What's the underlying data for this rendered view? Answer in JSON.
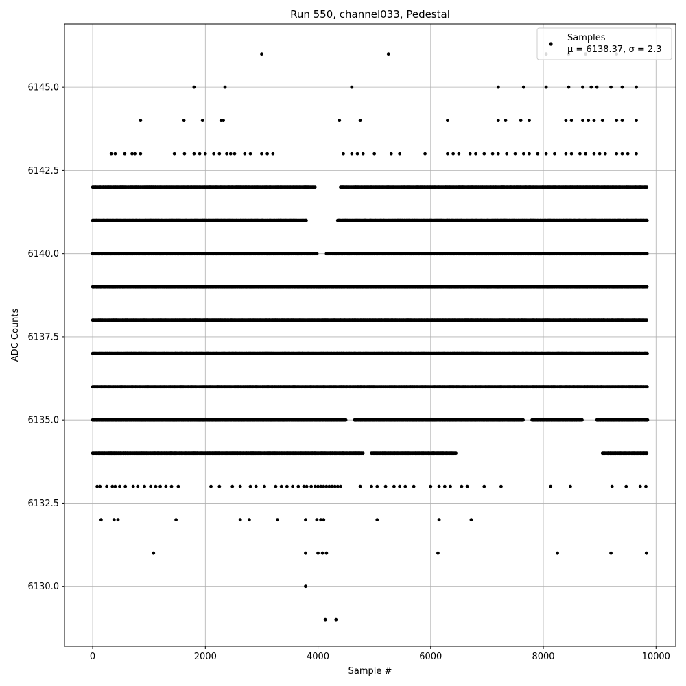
{
  "chart_data": {
    "type": "scatter",
    "title": "Run 550, channel033, Pedestal",
    "xlabel": "Sample #",
    "ylabel": "ADC Counts",
    "xlim": [
      -500,
      10350
    ],
    "ylim": [
      6128.2,
      6146.9
    ],
    "xticks": [
      0,
      2000,
      4000,
      6000,
      8000,
      10000
    ],
    "xtick_labels": [
      "0",
      "2000",
      "4000",
      "6000",
      "8000",
      "10000"
    ],
    "yticks": [
      6130.0,
      6132.5,
      6135.0,
      6137.5,
      6140.0,
      6142.5,
      6145.0
    ],
    "ytick_labels": [
      "6130.0",
      "6132.5",
      "6135.0",
      "6137.5",
      "6140.0",
      "6142.5",
      "6145.0"
    ],
    "grid": true,
    "legend_position": "top-right",
    "marker_color": "#000000",
    "series": [
      {
        "name": "Samples",
        "label_line1": "Samples",
        "label_line2_prefix": "μ = 6138.37, ",
        "label_line2_suffix": "σ = 2.3",
        "dense_levels": [
          {
            "y": 6134,
            "ranges": [
              [
                0,
                4800
              ],
              [
                4950,
                6450
              ],
              [
                9050,
                9850
              ]
            ]
          },
          {
            "y": 6135,
            "ranges": [
              [
                0,
                4500
              ],
              [
                4650,
                7650
              ],
              [
                7800,
                8700
              ],
              [
                8950,
                9850
              ]
            ]
          },
          {
            "y": 6136,
            "ranges": [
              [
                0,
                9850
              ]
            ]
          },
          {
            "y": 6137,
            "ranges": [
              [
                0,
                9850
              ]
            ]
          },
          {
            "y": 6138,
            "ranges": [
              [
                0,
                9850
              ]
            ]
          },
          {
            "y": 6139,
            "ranges": [
              [
                0,
                9850
              ]
            ]
          },
          {
            "y": 6140,
            "ranges": [
              [
                0,
                4000
              ],
              [
                4150,
                9850
              ]
            ]
          },
          {
            "y": 6141,
            "ranges": [
              [
                0,
                3800
              ],
              [
                4350,
                9850
              ]
            ]
          },
          {
            "y": 6142,
            "ranges": [
              [
                0,
                3950
              ],
              [
                4400,
                9850
              ]
            ]
          }
        ],
        "points": [
          [
            3000,
            6146
          ],
          [
            5250,
            6146
          ],
          [
            8050,
            6146
          ],
          [
            8450,
            6146
          ],
          [
            8750,
            6146
          ],
          [
            9300,
            6146
          ],
          [
            1800,
            6145
          ],
          [
            2350,
            6145
          ],
          [
            4600,
            6145
          ],
          [
            7200,
            6145
          ],
          [
            7650,
            6145
          ],
          [
            8050,
            6145
          ],
          [
            8450,
            6145
          ],
          [
            8700,
            6145
          ],
          [
            8850,
            6145
          ],
          [
            8950,
            6145
          ],
          [
            9200,
            6145
          ],
          [
            9400,
            6145
          ],
          [
            9650,
            6145
          ],
          [
            850,
            6144
          ],
          [
            1620,
            6144
          ],
          [
            1950,
            6144
          ],
          [
            2280,
            6144
          ],
          [
            2320,
            6144
          ],
          [
            4380,
            6144
          ],
          [
            4750,
            6144
          ],
          [
            6300,
            6144
          ],
          [
            7200,
            6144
          ],
          [
            7330,
            6144
          ],
          [
            7600,
            6144
          ],
          [
            7750,
            6144
          ],
          [
            8400,
            6144
          ],
          [
            8500,
            6144
          ],
          [
            8700,
            6144
          ],
          [
            8800,
            6144
          ],
          [
            8900,
            6144
          ],
          [
            9050,
            6144
          ],
          [
            9300,
            6144
          ],
          [
            9400,
            6144
          ],
          [
            9650,
            6144
          ],
          [
            330,
            6143
          ],
          [
            400,
            6143
          ],
          [
            570,
            6143
          ],
          [
            700,
            6143
          ],
          [
            750,
            6143
          ],
          [
            850,
            6143
          ],
          [
            1450,
            6143
          ],
          [
            1630,
            6143
          ],
          [
            1800,
            6143
          ],
          [
            1900,
            6143
          ],
          [
            2000,
            6143
          ],
          [
            2150,
            6143
          ],
          [
            2250,
            6143
          ],
          [
            2380,
            6143
          ],
          [
            2450,
            6143
          ],
          [
            2520,
            6143
          ],
          [
            2700,
            6143
          ],
          [
            2800,
            6143
          ],
          [
            3000,
            6143
          ],
          [
            3100,
            6143
          ],
          [
            3200,
            6143
          ],
          [
            4450,
            6143
          ],
          [
            4600,
            6143
          ],
          [
            4700,
            6143
          ],
          [
            4800,
            6143
          ],
          [
            5000,
            6143
          ],
          [
            5300,
            6143
          ],
          [
            5450,
            6143
          ],
          [
            5900,
            6143
          ],
          [
            6300,
            6143
          ],
          [
            6400,
            6143
          ],
          [
            6500,
            6143
          ],
          [
            6700,
            6143
          ],
          [
            6800,
            6143
          ],
          [
            6950,
            6143
          ],
          [
            7100,
            6143
          ],
          [
            7200,
            6143
          ],
          [
            7350,
            6143
          ],
          [
            7500,
            6143
          ],
          [
            7650,
            6143
          ],
          [
            7750,
            6143
          ],
          [
            7900,
            6143
          ],
          [
            8050,
            6143
          ],
          [
            8200,
            6143
          ],
          [
            8400,
            6143
          ],
          [
            8500,
            6143
          ],
          [
            8650,
            6143
          ],
          [
            8750,
            6143
          ],
          [
            8900,
            6143
          ],
          [
            9000,
            6143
          ],
          [
            9100,
            6143
          ],
          [
            9300,
            6143
          ],
          [
            9400,
            6143
          ],
          [
            9500,
            6143
          ],
          [
            9650,
            6143
          ],
          [
            80,
            6133
          ],
          [
            130,
            6133
          ],
          [
            250,
            6133
          ],
          [
            350,
            6133
          ],
          [
            400,
            6133
          ],
          [
            480,
            6133
          ],
          [
            580,
            6133
          ],
          [
            720,
            6133
          ],
          [
            800,
            6133
          ],
          [
            920,
            6133
          ],
          [
            1030,
            6133
          ],
          [
            1120,
            6133
          ],
          [
            1200,
            6133
          ],
          [
            1300,
            6133
          ],
          [
            1400,
            6133
          ],
          [
            1520,
            6133
          ],
          [
            2100,
            6133
          ],
          [
            2250,
            6133
          ],
          [
            2480,
            6133
          ],
          [
            2620,
            6133
          ],
          [
            2800,
            6133
          ],
          [
            2900,
            6133
          ],
          [
            3050,
            6133
          ],
          [
            3250,
            6133
          ],
          [
            3350,
            6133
          ],
          [
            3450,
            6133
          ],
          [
            3550,
            6133
          ],
          [
            3650,
            6133
          ],
          [
            3750,
            6133
          ],
          [
            3800,
            6133
          ],
          [
            3880,
            6133
          ],
          [
            3950,
            6133
          ],
          [
            4000,
            6133
          ],
          [
            4050,
            6133
          ],
          [
            4100,
            6133
          ],
          [
            4150,
            6133
          ],
          [
            4200,
            6133
          ],
          [
            4250,
            6133
          ],
          [
            4300,
            6133
          ],
          [
            4350,
            6133
          ],
          [
            4400,
            6133
          ],
          [
            4750,
            6133
          ],
          [
            4950,
            6133
          ],
          [
            5050,
            6133
          ],
          [
            5200,
            6133
          ],
          [
            5350,
            6133
          ],
          [
            5450,
            6133
          ],
          [
            5550,
            6133
          ],
          [
            5700,
            6133
          ],
          [
            6000,
            6133
          ],
          [
            6150,
            6133
          ],
          [
            6250,
            6133
          ],
          [
            6350,
            6133
          ],
          [
            6550,
            6133
          ],
          [
            6650,
            6133
          ],
          [
            6950,
            6133
          ],
          [
            7250,
            6133
          ],
          [
            8130,
            6133
          ],
          [
            8480,
            6133
          ],
          [
            9220,
            6133
          ],
          [
            9470,
            6133
          ],
          [
            9720,
            6133
          ],
          [
            9820,
            6133
          ],
          [
            150,
            6132
          ],
          [
            380,
            6132
          ],
          [
            450,
            6132
          ],
          [
            1480,
            6132
          ],
          [
            2620,
            6132
          ],
          [
            2780,
            6132
          ],
          [
            3280,
            6132
          ],
          [
            3780,
            6132
          ],
          [
            3980,
            6132
          ],
          [
            4050,
            6132
          ],
          [
            4100,
            6132
          ],
          [
            5050,
            6132
          ],
          [
            6150,
            6132
          ],
          [
            6720,
            6132
          ],
          [
            1080,
            6131
          ],
          [
            3780,
            6131
          ],
          [
            4000,
            6131
          ],
          [
            4080,
            6131
          ],
          [
            4150,
            6131
          ],
          [
            6130,
            6131
          ],
          [
            8250,
            6131
          ],
          [
            9200,
            6131
          ],
          [
            9830,
            6131
          ],
          [
            3780,
            6130
          ],
          [
            4130,
            6129
          ],
          [
            4320,
            6129
          ]
        ]
      }
    ]
  }
}
